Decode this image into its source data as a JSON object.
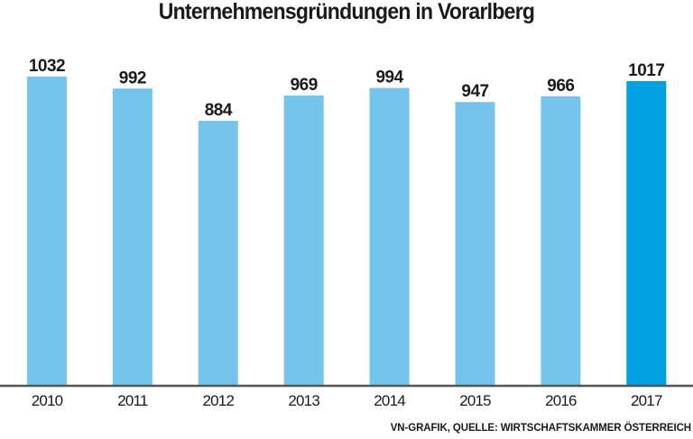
{
  "chart_data": {
    "type": "bar",
    "title": "Unternehmensgründungen in Vorarlberg",
    "categories": [
      "2010",
      "2011",
      "2012",
      "2013",
      "2014",
      "2015",
      "2016",
      "2017"
    ],
    "values": [
      1032,
      992,
      884,
      969,
      994,
      947,
      966,
      1017
    ],
    "data_labels": [
      "1032",
      "992",
      "884",
      "969",
      "994",
      "947",
      "966",
      "1017"
    ],
    "xlabel": "",
    "ylabel": "",
    "ylim": [
      0,
      1032
    ],
    "grid": false,
    "colors": {
      "bar": "#74c4ec",
      "highlight": "#00a0e0",
      "axis": "#555555"
    },
    "highlight_category": "2017",
    "source": "VN-GRAFIK, QUELLE: WIRTSCHAFTSKAMMER ÖSTERREICH"
  }
}
